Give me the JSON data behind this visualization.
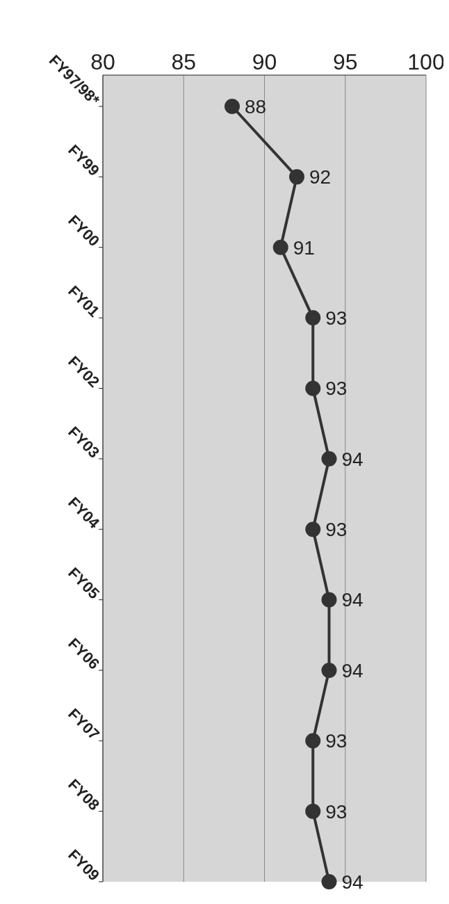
{
  "chart_data": {
    "type": "line",
    "orientation": "horizontal",
    "categories": [
      "FY97/98*",
      "FY99",
      "FY00",
      "FY01",
      "FY02",
      "FY03",
      "FY04",
      "FY05",
      "FY06",
      "FY07",
      "FY08",
      "FY09"
    ],
    "series": [
      {
        "color": "#333333",
        "values": [
          88,
          92,
          91,
          93,
          93,
          94,
          93,
          94,
          94,
          93,
          93,
          94
        ]
      }
    ],
    "xlim": [
      80,
      100
    ],
    "xticks": [
      80,
      85,
      90,
      95,
      100
    ],
    "grid": "x",
    "marker": "circle",
    "line_style": "solid",
    "data_labels": true
  }
}
